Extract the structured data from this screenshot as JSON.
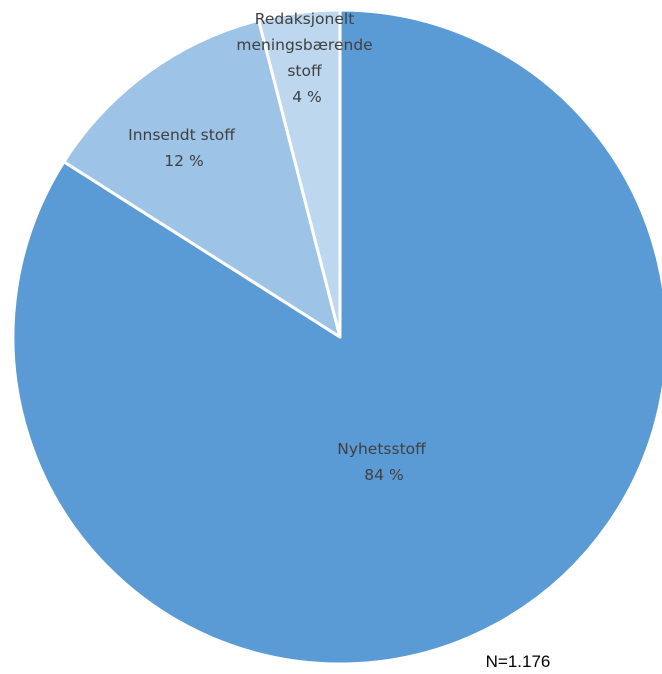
{
  "chart_data": {
    "type": "pie",
    "slices": [
      {
        "label": "Nyhetsstoff",
        "value_label": "84 %",
        "value": 84,
        "color": "#5b9bd5"
      },
      {
        "label": "Innsendt stoff",
        "value_label": "12 %",
        "value": 12,
        "color": "#9dc3e6"
      },
      {
        "label": "Redaksjonelt meningsbærende stoff",
        "value_label": "4 %",
        "value": 4,
        "color": "#bdd7ee"
      }
    ],
    "note": "N=1.176",
    "start_angle_deg": 0,
    "direction": "clockwise",
    "legend": "none"
  }
}
